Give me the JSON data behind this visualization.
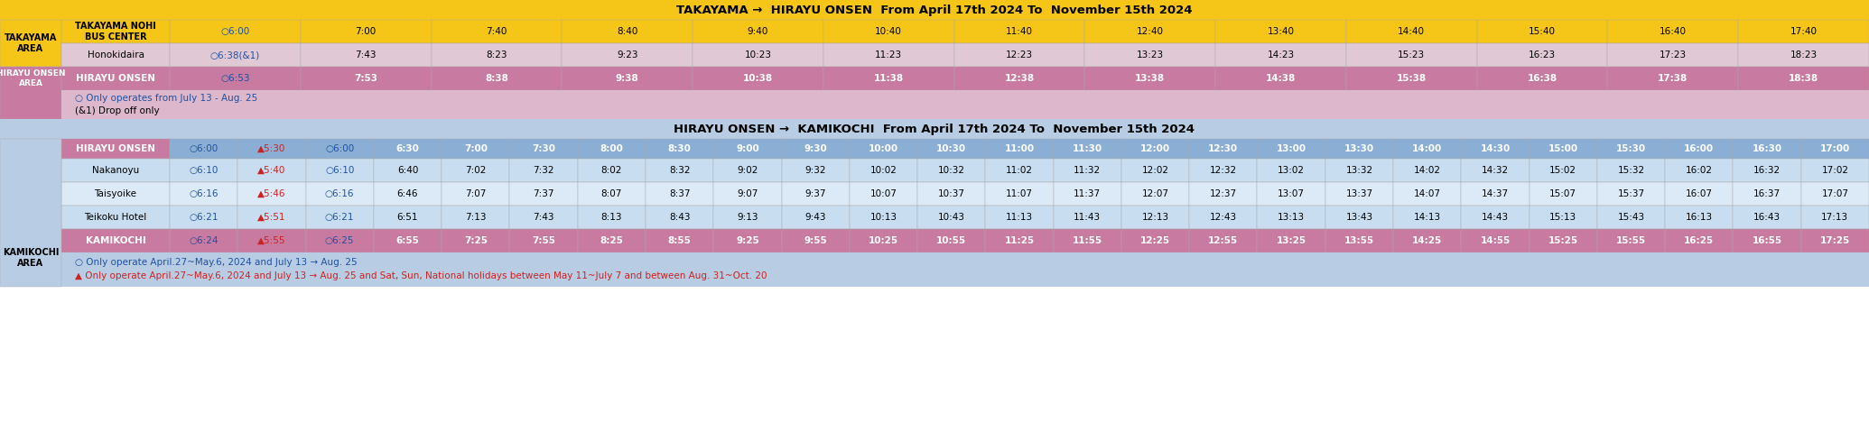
{
  "title1": "TAKAYAMA →  HIRAYU ONSEN  From April 17th 2024 To  November 15th 2024",
  "title2": "HIRAYU ONSEN →  KAMIKOCHI  From April 17th 2024 To  November 15th 2024",
  "section1_rows": [
    {
      "stop": "TAKAYAMA NOHI\nBUS CENTER",
      "times": [
        "○6:00",
        "7:00",
        "7:40",
        "8:40",
        "9:40",
        "10:40",
        "11:40",
        "12:40",
        "13:40",
        "14:40",
        "15:40",
        "16:40",
        "17:40"
      ],
      "area_bg": "#f5c518",
      "stop_bg": "#f5c518",
      "data_bg": "#f5c518",
      "text_color": "#000000",
      "area_label": "TAKAYAMA\nAREA",
      "area_text_color": "#000000"
    },
    {
      "stop": "Honokidaira",
      "times": [
        "○6:38(&1)",
        "7:43",
        "8:23",
        "9:23",
        "10:23",
        "11:23",
        "12:23",
        "13:23",
        "14:23",
        "15:23",
        "16:23",
        "17:23",
        "18:23"
      ],
      "area_bg": "#f5e8b0",
      "stop_bg": "#e8d0d8",
      "data_bg": "#e8d0d8",
      "text_color": "#000000",
      "area_label": "",
      "area_text_color": "#000000"
    }
  ],
  "section1_hirayu_row": {
    "stop": "HIRAYU ONSEN",
    "times": [
      "○6:53",
      "7:53",
      "8:38",
      "9:38",
      "10:38",
      "11:38",
      "12:38",
      "13:38",
      "14:38",
      "15:38",
      "16:38",
      "17:38",
      "18:38"
    ],
    "area_bg": "#c97aa0",
    "stop_bg": "#c97aa0",
    "data_bg": "#c97aa0",
    "area_label": "HIRAYU ONSEN\nAREA",
    "text_color": "#ffffff"
  },
  "section1_note_line1": "○ Only operates from July 13 - Aug. 25",
  "section1_note_line2": "(&1) Drop off only",
  "section1_note_bg": "#ddb8cc",
  "section2_header": {
    "stop": "HIRAYU ONSEN",
    "times": [
      "○6:00",
      "▲5:30",
      "○6:00",
      "6:30",
      "7:00",
      "7:30",
      "8:00",
      "8:30",
      "9:00",
      "9:30",
      "10:00",
      "10:30",
      "11:00",
      "11:30",
      "12:00",
      "12:30",
      "13:00",
      "13:30",
      "14:00",
      "14:30",
      "15:00",
      "15:30",
      "16:00",
      "16:30",
      "17:00"
    ],
    "stop_bg": "#c97aa0",
    "data_bg": "#8bafd4",
    "text_color": "#ffffff"
  },
  "section2_rows": [
    {
      "stop": "Nakanoyu",
      "times": [
        "○6:10",
        "▲5:40",
        "○6:10",
        "6:40",
        "7:02",
        "7:32",
        "8:02",
        "8:32",
        "9:02",
        "9:32",
        "10:02",
        "10:32",
        "11:02",
        "11:32",
        "12:02",
        "12:32",
        "13:02",
        "13:32",
        "14:02",
        "14:32",
        "15:02",
        "15:32",
        "16:02",
        "16:32",
        "17:02"
      ]
    },
    {
      "stop": "Taisyoike",
      "times": [
        "○6:16",
        "▲5:46",
        "○6:16",
        "6:46",
        "7:07",
        "7:37",
        "8:07",
        "8:37",
        "9:07",
        "9:37",
        "10:07",
        "10:37",
        "11:07",
        "11:37",
        "12:07",
        "12:37",
        "13:07",
        "13:37",
        "14:07",
        "14:37",
        "15:07",
        "15:37",
        "16:07",
        "16:37",
        "17:07"
      ]
    },
    {
      "stop": "Teikoku Hotel",
      "times": [
        "○6:21",
        "▲5:51",
        "○6:21",
        "6:51",
        "7:13",
        "7:43",
        "8:13",
        "8:43",
        "9:13",
        "9:43",
        "10:13",
        "10:43",
        "11:13",
        "11:43",
        "12:13",
        "12:43",
        "13:13",
        "13:43",
        "14:13",
        "14:43",
        "15:13",
        "15:43",
        "16:13",
        "16:43",
        "17:13"
      ]
    }
  ],
  "section2_kamikochi_row": {
    "stop": "KAMIKOCHI",
    "times": [
      "○6:24",
      "▲5:55",
      "○6:25",
      "6:55",
      "7:25",
      "7:55",
      "8:25",
      "8:55",
      "9:25",
      "9:55",
      "10:25",
      "10:55",
      "11:25",
      "11:55",
      "12:25",
      "12:55",
      "13:25",
      "13:55",
      "14:25",
      "14:55",
      "15:25",
      "15:55",
      "16:25",
      "16:55",
      "17:25"
    ],
    "stop_bg": "#c97aa0",
    "data_bg": "#c97aa0",
    "text_color": "#ffffff"
  },
  "section2_note1": "○ Only operate April.27~May.6, 2024 and July 13 → Aug. 25",
  "section2_note2": "▲ Only operate April.27~May.6, 2024 and July 13 → Aug. 25 and Sat, Sun, National holidays between May 11~July 7 and between Aug. 31~Oct. 20",
  "colors": {
    "title1_bg": "#f5c518",
    "title2_bg": "#b8cce4",
    "s1_area_yellow": "#f5c518",
    "s1_area_lightyellow": "#f0e8c0",
    "s1_honokidaira_bg": "#e0c8d4",
    "s1_hirayu_area_bg": "#c97aa0",
    "s1_note_bg": "#ddb8cc",
    "s2_title_bg": "#b8cce4",
    "s2_area_bg": "#b8cce4",
    "s2_header_stop_bg": "#c97aa0",
    "s2_header_data_bg": "#8bafd4",
    "s2_data_bg": "#c8ddf0",
    "s2_alt_data_bg": "#dce9f7",
    "s2_kamikochi_area_bg": "#b8cce4",
    "s2_kamikochi_stop_bg": "#c97aa0",
    "s2_note_bg": "#b8cce4",
    "blue_text": "#2050a0",
    "red_text": "#cc2222",
    "white": "#ffffff",
    "black": "#000000"
  }
}
